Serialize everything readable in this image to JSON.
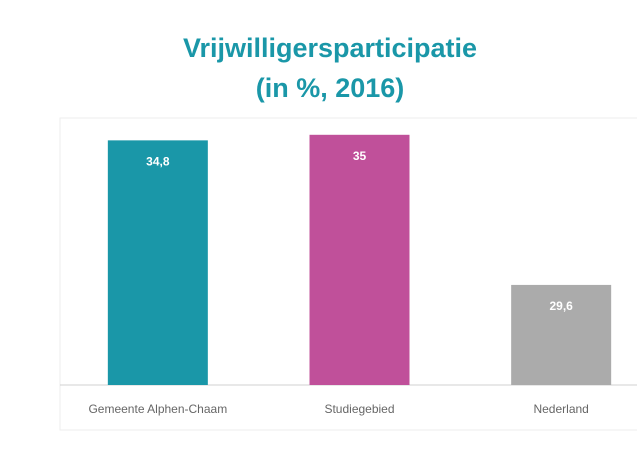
{
  "chart_data": {
    "type": "bar",
    "title": "Vrijwilligersparticipatie\n(in %, 2016)",
    "categories": [
      "Gemeente Alphen-Chaam",
      "Studiegebied",
      "Nederland"
    ],
    "values": [
      34.8,
      35,
      29.6
    ],
    "value_labels": [
      "34,8",
      "35",
      "29,6"
    ],
    "colors": [
      "#1a97a8",
      "#c0509a",
      "#ababab"
    ],
    "ylim": [
      26,
      36
    ]
  }
}
